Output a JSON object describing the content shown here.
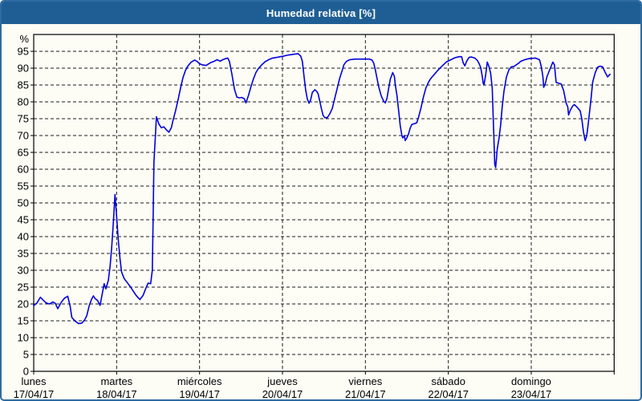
{
  "window": {
    "title": "Humedad relativa [%]"
  },
  "colors": {
    "titlebar_bg": "#1e5e95",
    "titlebar_text": "#ffffff",
    "frame_border": "#2e6ba1",
    "chart_bg": "#fdfdf6",
    "grid_line": "#1a1a1a",
    "axis_line": "#000000",
    "tick_text": "#000000",
    "series_line": "#0101dd"
  },
  "chart_data": {
    "type": "line",
    "title": "Humedad relativa [%]",
    "grid": "dashed",
    "legend": "none",
    "y_axis": {
      "unit": "%",
      "min": 0,
      "max": 100,
      "tick_step": 5,
      "ticks": [
        95,
        90,
        85,
        80,
        75,
        70,
        65,
        60,
        55,
        50,
        45,
        40,
        35,
        30,
        25,
        20,
        15,
        10,
        5,
        0
      ]
    },
    "x_axis": {
      "days": [
        {
          "name": "lunes",
          "date": "17/04/17"
        },
        {
          "name": "martes",
          "date": "18/04/17"
        },
        {
          "name": "miércoles",
          "date": "19/04/17"
        },
        {
          "name": "jueves",
          "date": "20/04/17"
        },
        {
          "name": "viernes",
          "date": "21/04/17"
        },
        {
          "name": "sábado",
          "date": "22/04/17"
        },
        {
          "name": "domingo",
          "date": "23/04/17"
        }
      ]
    },
    "series": [
      {
        "name": "Humedad relativa [%]",
        "color": "#0101dd",
        "x_unit": "days_from_monday_00h",
        "points": [
          [
            0,
            19.5
          ],
          [
            0.04,
            20.3
          ],
          [
            0.08,
            22
          ],
          [
            0.12,
            21
          ],
          [
            0.15,
            20.3
          ],
          [
            0.19,
            20
          ],
          [
            0.23,
            20.6
          ],
          [
            0.26,
            20.2
          ],
          [
            0.29,
            18.6
          ],
          [
            0.33,
            20.4
          ],
          [
            0.37,
            21.7
          ],
          [
            0.41,
            22.3
          ],
          [
            0.44,
            19.2
          ],
          [
            0.46,
            16
          ],
          [
            0.5,
            14.9
          ],
          [
            0.54,
            14.2
          ],
          [
            0.58,
            14.3
          ],
          [
            0.61,
            15.1
          ],
          [
            0.64,
            16.5
          ],
          [
            0.67,
            19.5
          ],
          [
            0.7,
            21.5
          ],
          [
            0.72,
            22.4
          ],
          [
            0.74,
            21.6
          ],
          [
            0.77,
            21
          ],
          [
            0.8,
            19.6
          ],
          [
            0.83,
            23.5
          ],
          [
            0.85,
            26
          ],
          [
            0.87,
            24.5
          ],
          [
            0.9,
            27
          ],
          [
            0.92,
            31
          ],
          [
            0.94,
            36.5
          ],
          [
            0.96,
            44
          ],
          [
            0.98,
            52.5
          ],
          [
            1,
            46
          ],
          [
            1.02,
            39
          ],
          [
            1.04,
            33.5
          ],
          [
            1.06,
            29.5
          ],
          [
            1.09,
            27.6
          ],
          [
            1.12,
            26.6
          ],
          [
            1.16,
            25.3
          ],
          [
            1.2,
            23.8
          ],
          [
            1.24,
            22.4
          ],
          [
            1.28,
            21.3
          ],
          [
            1.32,
            22.6
          ],
          [
            1.35,
            24.5
          ],
          [
            1.38,
            26.2
          ],
          [
            1.41,
            26
          ],
          [
            1.43,
            30
          ],
          [
            1.44,
            45
          ],
          [
            1.45,
            62
          ],
          [
            1.47,
            71
          ],
          [
            1.48,
            75.6
          ],
          [
            1.51,
            73.4
          ],
          [
            1.54,
            72.3
          ],
          [
            1.57,
            72.6
          ],
          [
            1.6,
            71.7
          ],
          [
            1.63,
            71
          ],
          [
            1.66,
            72.3
          ],
          [
            1.68,
            74.5
          ],
          [
            1.71,
            77.3
          ],
          [
            1.74,
            80.5
          ],
          [
            1.77,
            84
          ],
          [
            1.8,
            87.2
          ],
          [
            1.83,
            89.3
          ],
          [
            1.86,
            90.7
          ],
          [
            1.9,
            91.8
          ],
          [
            1.94,
            92.4
          ],
          [
            1.97,
            92
          ],
          [
            2,
            91.3
          ],
          [
            2.03,
            91
          ],
          [
            2.08,
            90.8
          ],
          [
            2.13,
            91.6
          ],
          [
            2.18,
            92.1
          ],
          [
            2.21,
            92.5
          ],
          [
            2.25,
            92.1
          ],
          [
            2.27,
            92.4
          ],
          [
            2.31,
            92.8
          ],
          [
            2.34,
            93
          ],
          [
            2.36,
            92
          ],
          [
            2.39,
            88.2
          ],
          [
            2.42,
            83.8
          ],
          [
            2.45,
            81.4
          ],
          [
            2.48,
            81.2
          ],
          [
            2.51,
            81.3
          ],
          [
            2.54,
            80.9
          ],
          [
            2.56,
            79.7
          ],
          [
            2.59,
            81.9
          ],
          [
            2.62,
            84.5
          ],
          [
            2.65,
            86.8
          ],
          [
            2.68,
            88.7
          ],
          [
            2.71,
            89.9
          ],
          [
            2.75,
            91
          ],
          [
            2.79,
            91.9
          ],
          [
            2.84,
            92.6
          ],
          [
            2.88,
            93
          ],
          [
            2.93,
            93.2
          ],
          [
            2.97,
            93.4
          ],
          [
            3,
            93.5
          ],
          [
            3.05,
            93.8
          ],
          [
            3.1,
            94
          ],
          [
            3.15,
            94.2
          ],
          [
            3.19,
            94.3
          ],
          [
            3.22,
            93.6
          ],
          [
            3.24,
            92
          ],
          [
            3.26,
            87.5
          ],
          [
            3.28,
            83.5
          ],
          [
            3.3,
            80.8
          ],
          [
            3.32,
            79.6
          ],
          [
            3.34,
            80.6
          ],
          [
            3.36,
            82.8
          ],
          [
            3.39,
            83.6
          ],
          [
            3.41,
            83.2
          ],
          [
            3.43,
            82.4
          ],
          [
            3.45,
            80.2
          ],
          [
            3.47,
            77.9
          ],
          [
            3.49,
            76
          ],
          [
            3.51,
            75.3
          ],
          [
            3.54,
            75.3
          ],
          [
            3.57,
            76.4
          ],
          [
            3.6,
            78
          ],
          [
            3.63,
            81
          ],
          [
            3.66,
            84
          ],
          [
            3.69,
            87
          ],
          [
            3.72,
            89.3
          ],
          [
            3.74,
            91
          ],
          [
            3.77,
            92
          ],
          [
            3.81,
            92.5
          ],
          [
            3.87,
            92.7
          ],
          [
            3.93,
            92.7
          ],
          [
            4,
            92.7
          ],
          [
            4.05,
            92.7
          ],
          [
            4.08,
            92.4
          ],
          [
            4.1,
            91.5
          ],
          [
            4.12,
            89.5
          ],
          [
            4.14,
            87
          ],
          [
            4.16,
            84.5
          ],
          [
            4.19,
            81.8
          ],
          [
            4.22,
            80.2
          ],
          [
            4.24,
            79.7
          ],
          [
            4.26,
            81
          ],
          [
            4.28,
            84
          ],
          [
            4.3,
            86.7
          ],
          [
            4.33,
            88.7
          ],
          [
            4.35,
            87.5
          ],
          [
            4.36,
            85.2
          ],
          [
            4.38,
            82
          ],
          [
            4.4,
            77.5
          ],
          [
            4.42,
            73
          ],
          [
            4.44,
            70
          ],
          [
            4.45,
            69.3
          ],
          [
            4.47,
            70
          ],
          [
            4.48,
            68.5
          ],
          [
            4.5,
            69.3
          ],
          [
            4.52,
            70.5
          ],
          [
            4.54,
            72.2
          ],
          [
            4.56,
            73.3
          ],
          [
            4.59,
            73.5
          ],
          [
            4.62,
            73.8
          ],
          [
            4.64,
            75.4
          ],
          [
            4.67,
            78.2
          ],
          [
            4.7,
            81.5
          ],
          [
            4.73,
            84.2
          ],
          [
            4.76,
            85.8
          ],
          [
            4.79,
            87
          ],
          [
            4.84,
            88.4
          ],
          [
            4.89,
            89.8
          ],
          [
            4.94,
            91
          ],
          [
            4.98,
            91.9
          ],
          [
            5.03,
            92.5
          ],
          [
            5.08,
            93.1
          ],
          [
            5.13,
            93.4
          ],
          [
            5.16,
            93.4
          ],
          [
            5.18,
            91.5
          ],
          [
            5.2,
            90.7
          ],
          [
            5.22,
            92
          ],
          [
            5.25,
            93.2
          ],
          [
            5.28,
            93.3
          ],
          [
            5.32,
            93
          ],
          [
            5.35,
            92.3
          ],
          [
            5.37,
            91.4
          ],
          [
            5.39,
            90.2
          ],
          [
            5.41,
            87.5
          ],
          [
            5.42,
            85.5
          ],
          [
            5.43,
            85
          ],
          [
            5.45,
            88
          ],
          [
            5.47,
            91.8
          ],
          [
            5.49,
            90.5
          ],
          [
            5.51,
            88.5
          ],
          [
            5.52,
            86.2
          ],
          [
            5.53,
            84
          ],
          [
            5.54,
            76
          ],
          [
            5.55,
            69
          ],
          [
            5.56,
            61.5
          ],
          [
            5.57,
            60.5
          ],
          [
            5.58,
            63
          ],
          [
            5.59,
            66
          ],
          [
            5.61,
            69
          ],
          [
            5.63,
            73
          ],
          [
            5.65,
            78.5
          ],
          [
            5.67,
            83
          ],
          [
            5.7,
            87.3
          ],
          [
            5.73,
            89.5
          ],
          [
            5.76,
            90.4
          ],
          [
            5.79,
            90.5
          ],
          [
            5.82,
            91
          ],
          [
            5.85,
            91.5
          ],
          [
            5.87,
            92
          ],
          [
            5.92,
            92.5
          ],
          [
            5.97,
            92.8
          ],
          [
            6,
            92.9
          ],
          [
            6.05,
            93
          ],
          [
            6.1,
            92.5
          ],
          [
            6.12,
            90.6
          ],
          [
            6.14,
            87.5
          ],
          [
            6.15,
            84.3
          ],
          [
            6.17,
            85.5
          ],
          [
            6.19,
            87.5
          ],
          [
            6.23,
            90
          ],
          [
            6.26,
            91.8
          ],
          [
            6.28,
            91
          ],
          [
            6.3,
            85.8
          ],
          [
            6.33,
            85.5
          ],
          [
            6.36,
            85.3
          ],
          [
            6.39,
            83.4
          ],
          [
            6.42,
            79.7
          ],
          [
            6.44,
            78.5
          ],
          [
            6.45,
            76.1
          ],
          [
            6.47,
            77.5
          ],
          [
            6.5,
            78.8
          ],
          [
            6.52,
            79.2
          ],
          [
            6.55,
            78.5
          ],
          [
            6.59,
            77.3
          ],
          [
            6.61,
            74.9
          ],
          [
            6.63,
            71
          ],
          [
            6.65,
            68.5
          ],
          [
            6.67,
            70
          ],
          [
            6.69,
            74.1
          ],
          [
            6.72,
            80.7
          ],
          [
            6.74,
            85.8
          ],
          [
            6.77,
            88.6
          ],
          [
            6.8,
            90.3
          ],
          [
            6.83,
            90.6
          ],
          [
            6.86,
            90.4
          ],
          [
            6.89,
            88.8
          ],
          [
            6.92,
            87.4
          ],
          [
            6.95,
            88.2
          ]
        ]
      }
    ]
  }
}
